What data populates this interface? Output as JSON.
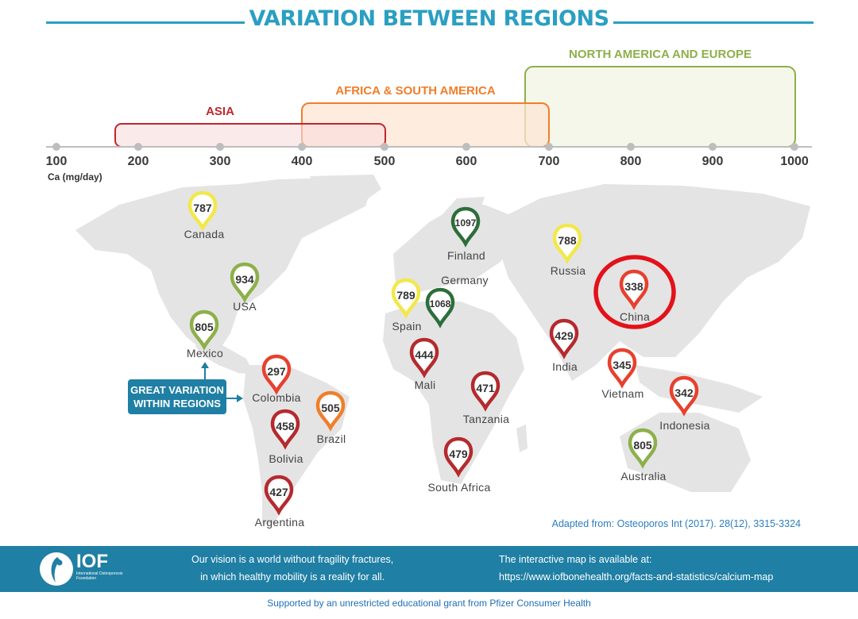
{
  "title": "VARIATION BETWEEN REGIONS",
  "scale": {
    "unit_label": "Ca (mg/day)",
    "ticks": [
      100,
      200,
      300,
      400,
      500,
      600,
      700,
      800,
      900,
      1000
    ],
    "range": [
      100,
      1000
    ]
  },
  "regions": [
    {
      "name": "ASIA",
      "from": 170,
      "to": 500,
      "color": "#c0262d"
    },
    {
      "name": "AFRICA & SOUTH AMERICA",
      "from": 400,
      "to": 700,
      "color": "#f07e2a"
    },
    {
      "name": "NORTH AMERICA AND EUROPE",
      "from": 670,
      "to": 1000,
      "color": "#8db04a"
    }
  ],
  "countries": [
    {
      "name": "Canada",
      "value": "787",
      "color": "#f2e84a"
    },
    {
      "name": "USA",
      "value": "934",
      "color": "#8db04a"
    },
    {
      "name": "Mexico",
      "value": "805",
      "color": "#8db04a"
    },
    {
      "name": "Colombia",
      "value": "297",
      "color": "#e8402f"
    },
    {
      "name": "Brazil",
      "value": "505",
      "color": "#f07e2a"
    },
    {
      "name": "Bolivia",
      "value": "458",
      "color": "#b42a2e"
    },
    {
      "name": "Argentina",
      "value": "427",
      "color": "#b42a2e"
    },
    {
      "name": "Finland",
      "value": "1097",
      "color": "#2d6e3a"
    },
    {
      "name": "Germany",
      "value": "1068",
      "color": "#2d6e3a"
    },
    {
      "name": "Spain",
      "value": "789",
      "color": "#f2e84a"
    },
    {
      "name": "Mali",
      "value": "444",
      "color": "#b42a2e"
    },
    {
      "name": "Tanzania",
      "value": "471",
      "color": "#b42a2e"
    },
    {
      "name": "South Africa",
      "value": "479",
      "color": "#b42a2e"
    },
    {
      "name": "Russia",
      "value": "788",
      "color": "#f2e84a"
    },
    {
      "name": "China",
      "value": "338",
      "color": "#e8402f",
      "highlighted": true
    },
    {
      "name": "India",
      "value": "429",
      "color": "#b42a2e"
    },
    {
      "name": "Vietnam",
      "value": "345",
      "color": "#e8402f"
    },
    {
      "name": "Indonesia",
      "value": "342",
      "color": "#e8402f"
    },
    {
      "name": "Australia",
      "value": "805",
      "color": "#8db04a"
    }
  ],
  "callout": {
    "line1": "GREAT VARIATION",
    "line2": "WITHIN REGIONS"
  },
  "source": "Adapted from: Osteoporos Int (2017). 28(12), 3315-3324",
  "footer": {
    "logo_text": "IOF",
    "logo_subtext": "International Osteoporosis Foundation",
    "vision_line1": "Our vision is a world without fragility fractures,",
    "vision_line2": "in which healthy mobility is a reality for all.",
    "map_line1": "The interactive map is available at:",
    "map_line2": "https://www.iofbonehealth.org/facts-and-statistics/calcium-map"
  },
  "support": "Supported by an unrestricted educational grant from Pfizer Consumer Health",
  "colors": {
    "accent": "#2a9fc2",
    "footer": "#1f7fa4",
    "highlight_ring": "#e3121a",
    "land": "#e4e4e4"
  }
}
